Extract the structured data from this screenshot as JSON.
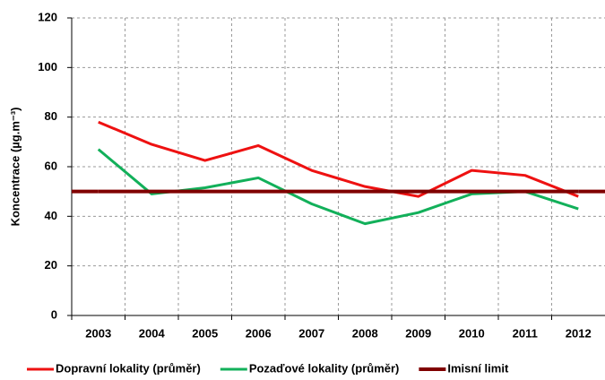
{
  "chart_data": {
    "type": "line",
    "ylabel": "Koncentrace (µg.m⁻³)",
    "categories": [
      "2003",
      "2004",
      "2005",
      "2006",
      "2007",
      "2008",
      "2009",
      "2010",
      "2011",
      "2012"
    ],
    "series": [
      {
        "name": "Dopravní lokality (průměr)",
        "color": "#ee1111",
        "values": [
          78,
          69,
          62.5,
          68.5,
          58.5,
          52,
          48,
          58.5,
          56.5,
          48
        ]
      },
      {
        "name": "Pozaďové lokality (průměr)",
        "color": "#12b05a",
        "values": [
          67,
          49,
          51.5,
          55.5,
          45,
          37,
          41.5,
          49,
          50,
          43
        ]
      },
      {
        "name": "Imisní limit",
        "color": "#800000",
        "values": [
          50,
          50,
          50,
          50,
          50,
          50,
          50,
          50,
          50,
          50
        ]
      }
    ],
    "ylim": [
      0,
      120
    ],
    "yticks": [
      0,
      20,
      40,
      60,
      80,
      100,
      120
    ],
    "grid": true
  }
}
